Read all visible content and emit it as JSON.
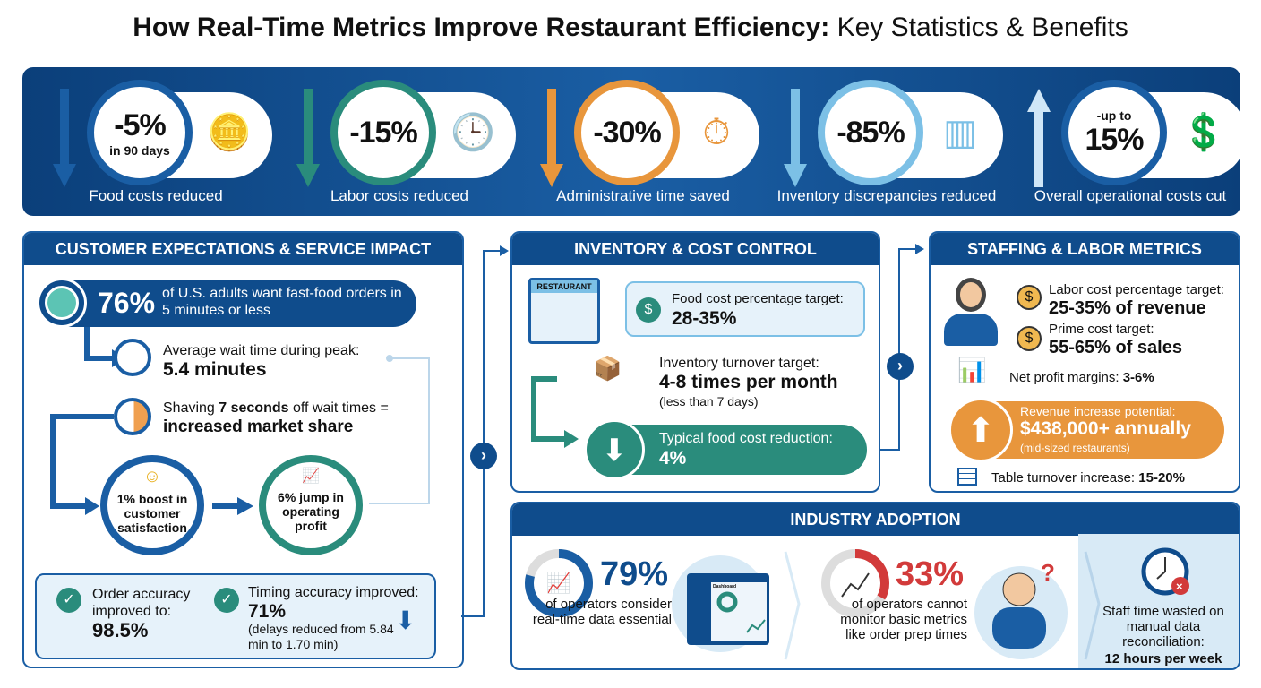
{
  "title": {
    "bold": "How Real-Time Metrics Improve Restaurant Efficiency:",
    "normal": " Key Statistics & Benefits"
  },
  "colors": {
    "navy": "#0f4c8c",
    "blue": "#1a5ea4",
    "teal": "#2a8c7c",
    "orange": "#e8963c",
    "lightblue": "#7cc0e6",
    "red": "#d23a3a"
  },
  "banner": [
    {
      "value": "-5%",
      "sub": "in 90 days",
      "label": "Food costs reduced",
      "icon": "coins-down-icon",
      "color": "#1a5ea4",
      "direction": "down"
    },
    {
      "value": "-15%",
      "sub": "",
      "label": "Labor costs reduced",
      "icon": "clock-down-icon",
      "color": "#2a8c7c",
      "direction": "down"
    },
    {
      "value": "-30%",
      "sub": "",
      "label": "Administrative time saved",
      "icon": "stopwatch-gear-icon",
      "color": "#e8963c",
      "direction": "down"
    },
    {
      "value": "-85%",
      "sub": "",
      "label": "Inventory discrepancies reduced",
      "icon": "barcode-box-icon",
      "color": "#7cc0e6",
      "direction": "down"
    },
    {
      "value": "15%",
      "pre": "-up to",
      "label": "Overall operational costs cut",
      "icon": "dollar-up-icon",
      "color": "#1a5ea4",
      "direction": "up"
    }
  ],
  "customer": {
    "header": "CUSTOMER EXPECTATIONS & SERVICE IMPACT",
    "stat_value": "76%",
    "stat_text": "of U.S. adults want fast-food orders in 5 minutes or less",
    "wait_label": "Average wait time during peak:",
    "wait_value": "5.4 minutes",
    "shave_pre": "Shaving ",
    "shave_bold": "7 seconds",
    "shave_post": " off wait times =",
    "shave_result": "increased market share",
    "satisfaction": "1% boost in customer satisfaction",
    "profit": "6% jump in operating profit",
    "order_label": "Order accuracy improved to:",
    "order_value": "98.5%",
    "timing_label": "Timing accuracy improved:",
    "timing_value": "71%",
    "timing_note": "(delays reduced from 5.84 min to 1.70 min)"
  },
  "inventory": {
    "header": "INVENTORY & COST CONTROL",
    "store_sign": "RESTAURANT",
    "food_label": "Food cost percentage target:",
    "food_value": "28-35%",
    "turn_label": "Inventory turnover target:",
    "turn_value": "4-8 times per month",
    "turn_note": "(less than 7 days)",
    "reduce_label": "Typical food cost reduction:",
    "reduce_value": "4%"
  },
  "staffing": {
    "header": "STAFFING & LABOR METRICS",
    "labor_label": "Labor cost percentage target:",
    "labor_value": "25-35% of revenue",
    "prime_label": "Prime cost target:",
    "prime_value": "55-65% of sales",
    "net_label": "Net profit margins: ",
    "net_value": "3-6%",
    "rev_label": "Revenue increase potential:",
    "rev_value": "$438,000+ annually",
    "rev_note": "(mid-sized restaurants)",
    "table_label": "Table turnover increase: ",
    "table_value": "15-20%"
  },
  "adoption": {
    "header": "INDUSTRY ADOPTION",
    "a_value": "79%",
    "a_percent": 79,
    "a_text": "of operators consider real-time data essential",
    "dashboard_title": "Dashboard",
    "b_value": "33%",
    "b_percent": 33,
    "b_text": "of operators cannot monitor basic metrics like order prep times",
    "c_text": "Staff time wasted on manual data reconciliation:",
    "c_value": "12 hours per week"
  }
}
